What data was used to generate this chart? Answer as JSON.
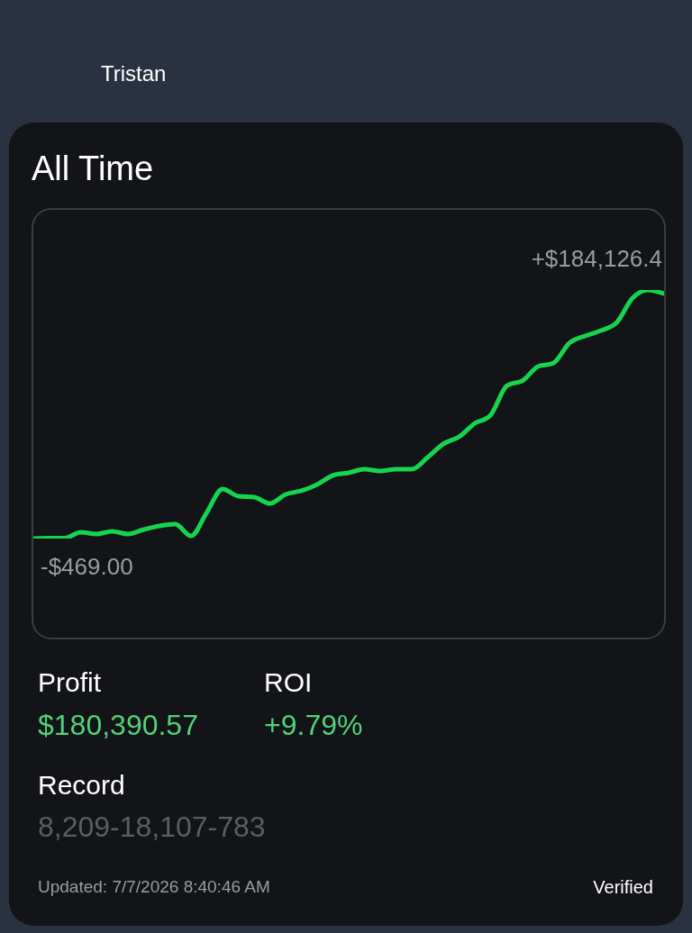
{
  "chart_data": {
    "type": "line",
    "title": "All Time",
    "categories": [
      null,
      null,
      null,
      null,
      null,
      null,
      null,
      null,
      null,
      null,
      null,
      null,
      null,
      null,
      null,
      null,
      null,
      null,
      null,
      null,
      null,
      null,
      null,
      null,
      null,
      null,
      null,
      null,
      null,
      null,
      null,
      null,
      null,
      null,
      null,
      null,
      null,
      null,
      null,
      null,
      null
    ],
    "series": [
      {
        "color": "#17d44f",
        "values": [
          -469,
          -100,
          -100,
          4200,
          2900,
          4900,
          2900,
          6200,
          8900,
          10200,
          1500,
          18900,
          36300,
          31000,
          30300,
          25600,
          32300,
          35000,
          39700,
          46400,
          48400,
          51000,
          49700,
          51000,
          51000,
          59700,
          69800,
          75100,
          85100,
          91200,
          112600,
          116600,
          127300,
          130000,
          144700,
          150000,
          154000,
          160000,
          178100,
          184126.4,
          181400
        ],
        "value_labels": [
          "-$469.00",
          null,
          null,
          null,
          null,
          null,
          null,
          null,
          null,
          null,
          null,
          null,
          null,
          null,
          null,
          null,
          null,
          null,
          null,
          null,
          null,
          null,
          null,
          null,
          null,
          null,
          null,
          null,
          null,
          null,
          null,
          null,
          null,
          null,
          null,
          null,
          null,
          null,
          null,
          "+$184,126.4",
          null
        ]
      }
    ],
    "marker": "none",
    "line_style": "solid",
    "annotations": [
      "Tristan",
      "Profit",
      "$180,390.57",
      "ROI",
      "+9.79%",
      "Record",
      "8,209-18,107-783",
      "Updated: 7/7/2026 8:40:46 AM",
      "Verified"
    ]
  }
}
